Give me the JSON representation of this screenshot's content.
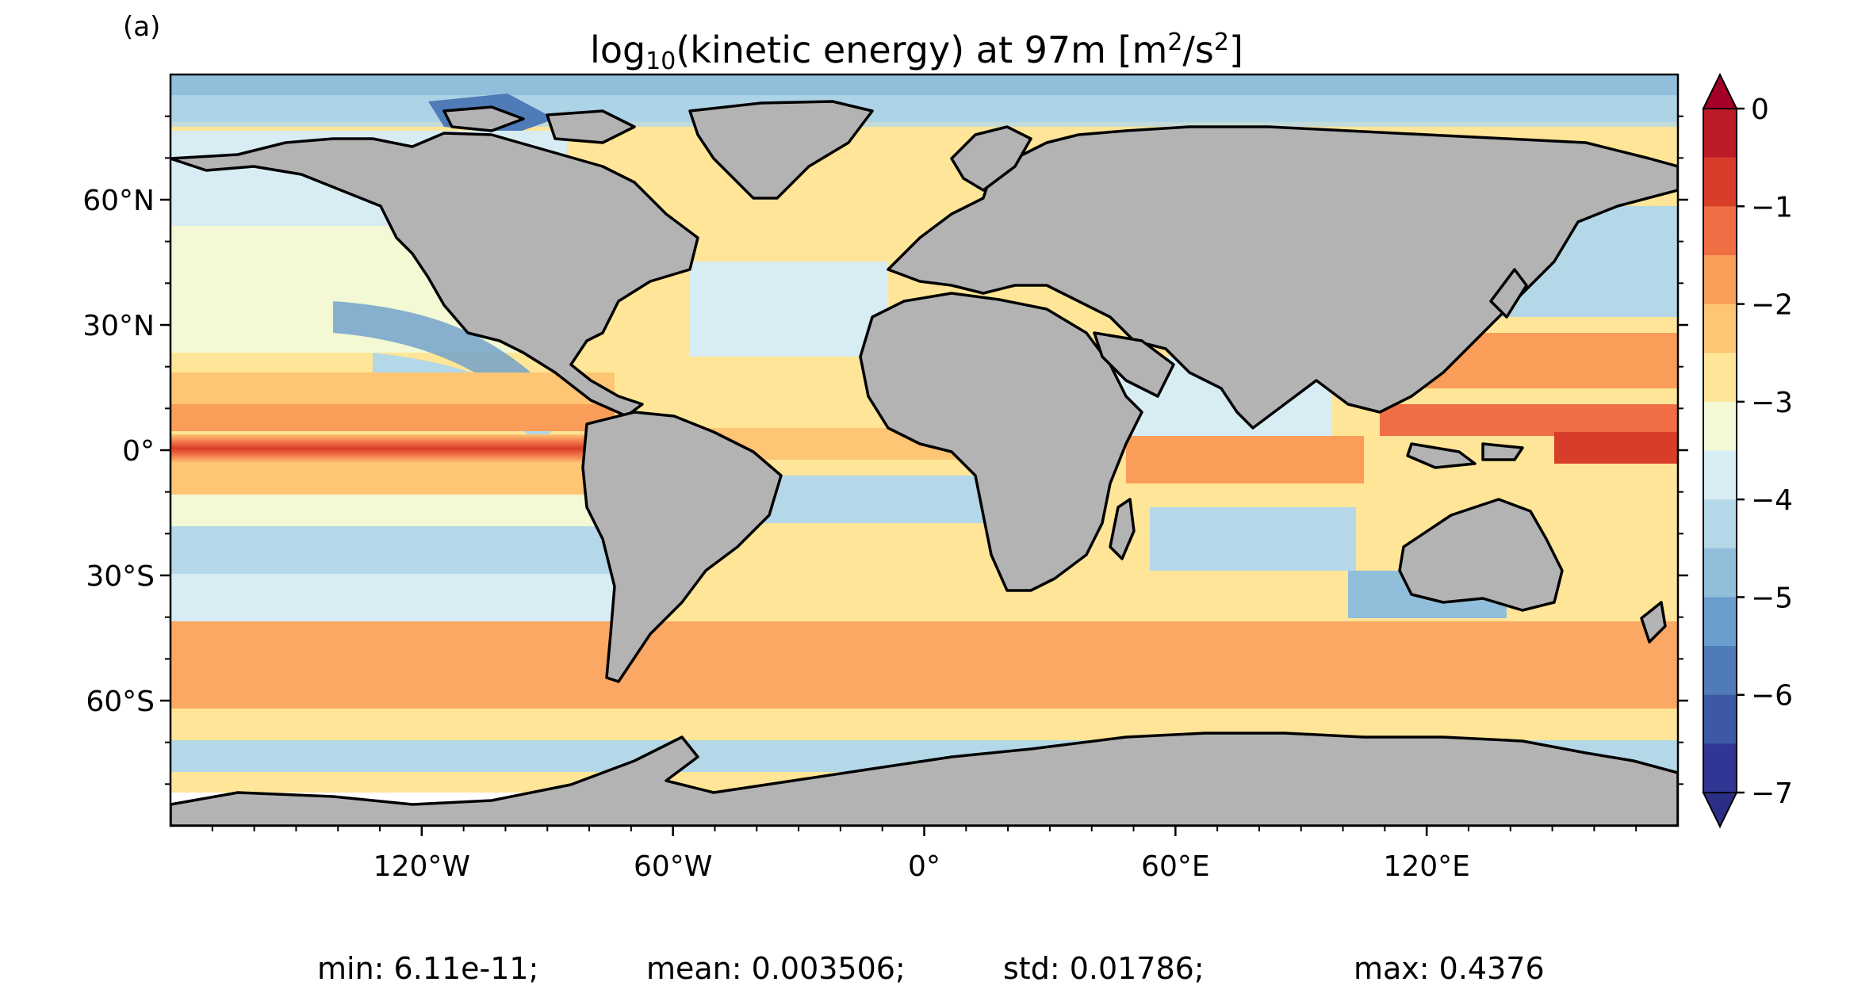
{
  "panel_label": "(a)",
  "title": {
    "prefix": "log",
    "prefix_sub": "10",
    "middle": "(kinetic energy) at 97m [m",
    "unit_sup": "2",
    "unit_mid": "/s",
    "unit_sup2": "2",
    "suffix": "]"
  },
  "map": {
    "projection": "plate-carree",
    "lat_range": [
      -90,
      90
    ],
    "lon_range": [
      -180,
      180
    ],
    "land_color": "#b3b3b3",
    "coastline_color": "#000000",
    "lat_ticks": [
      {
        "value": 60,
        "label": "60°N"
      },
      {
        "value": 30,
        "label": "30°N"
      },
      {
        "value": 0,
        "label": "0°"
      },
      {
        "value": -30,
        "label": "30°S"
      },
      {
        "value": -60,
        "label": "60°S"
      }
    ],
    "lon_ticks": [
      {
        "value": -120,
        "label": "120°W"
      },
      {
        "value": -60,
        "label": "60°W"
      },
      {
        "value": 0,
        "label": "0°"
      },
      {
        "value": 60,
        "label": "60°E"
      },
      {
        "value": 120,
        "label": "120°E"
      }
    ]
  },
  "colorbar": {
    "range": [
      -7,
      0
    ],
    "tick_labels": [
      "0",
      "−1",
      "−2",
      "−3",
      "−4",
      "−5",
      "−6",
      "−7"
    ],
    "tick_values": [
      0,
      -1,
      -2,
      -3,
      -4,
      -5,
      -6,
      -7
    ],
    "extend": "both",
    "levels": 14,
    "colors": [
      "#313695",
      "#3d59a6",
      "#4f7cb8",
      "#6a9ecc",
      "#91bfdb",
      "#b4d8e8",
      "#d8ecf3",
      "#f3f9d5",
      "#fee597",
      "#fdc574",
      "#f99d59",
      "#f06e44",
      "#d73d29",
      "#bb1a27"
    ],
    "extend_low_color": "#2a2f85",
    "extend_high_color": "#a50026"
  },
  "stats": {
    "min": "min: 6.11e-11;",
    "mean": "mean: 0.003506;",
    "std": "std: 0.01786;",
    "max": "max: 0.4376"
  }
}
